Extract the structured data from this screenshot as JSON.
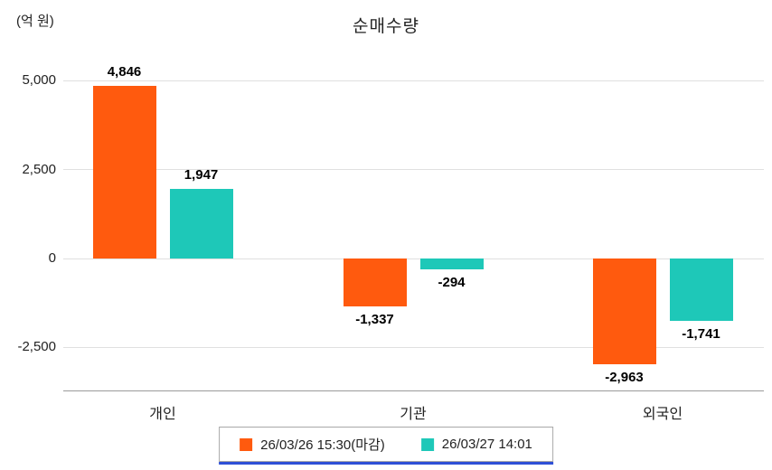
{
  "chart": {
    "accent_underline_color": "#2e4fd6",
    "axis_color": "#9a9a9a",
    "grid_color": "#e0e0e0"
  },
  "chart_data": {
    "type": "bar",
    "title": "순매수량",
    "unit_label": "(억 원)",
    "categories": [
      "개인",
      "기관",
      "외국인"
    ],
    "series": [
      {
        "name": "26/03/26 15:30(마감)",
        "color": "#ff5a0e",
        "values": [
          4846,
          -1337,
          -2963
        ]
      },
      {
        "name": "26/03/27 14:01",
        "color": "#1ec8b8",
        "values": [
          1947,
          -294,
          -1741
        ]
      }
    ],
    "value_labels": [
      [
        "4,846",
        "-1,337",
        "-2,963"
      ],
      [
        "1,947",
        "-294",
        "-1,741"
      ]
    ],
    "yticks": [
      5000,
      2500,
      0,
      -2500
    ],
    "ytick_labels": [
      "5,000",
      "2,500",
      "0",
      "-2,500"
    ],
    "ylim": [
      -3300,
      5600
    ],
    "grid": true,
    "legend_position": "bottom"
  }
}
